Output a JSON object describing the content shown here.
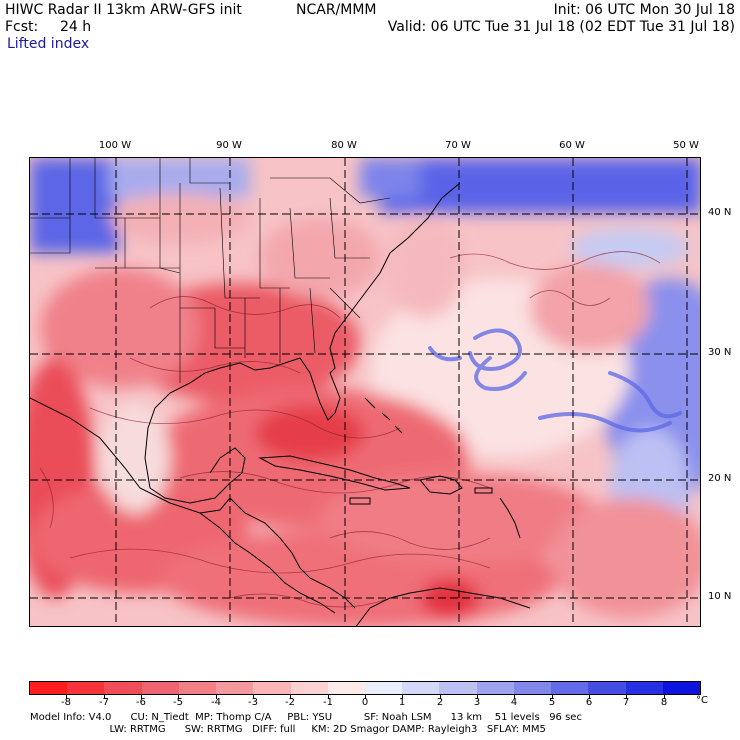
{
  "header": {
    "model": "HIWC Radar II 13km ARW-GFS init",
    "agency": "NCAR/MMM",
    "init": "Init: 06 UTC Mon 30 Jul 18",
    "fcst_label": "Fcst:",
    "fcst_value": "24 h",
    "valid": "Valid: 06 UTC Tue 31 Jul 18 (02 EDT Tue 31 Jul 18)",
    "field": "Lifted index"
  },
  "map": {
    "lon_labels": [
      "100 W",
      "90 W",
      "80 W",
      "70 W",
      "60 W",
      "50 W"
    ],
    "lat_labels": [
      "40 N",
      "30 N",
      "20 N",
      "10 N"
    ]
  },
  "colorbar": {
    "tick_labels": [
      "-8",
      "-7",
      "-6",
      "-5",
      "-4",
      "-3",
      "-2",
      "-1",
      "0",
      "1",
      "2",
      "3",
      "4",
      "5",
      "6",
      "7",
      "8"
    ],
    "unit": "°C",
    "colors": [
      "#ff1e1e",
      "#f7343a",
      "#ef4d57",
      "#ec6570",
      "#f07f86",
      "#f4999e",
      "#f8b6b8",
      "#fbd1d1",
      "#fdeaea",
      "#ecedfb",
      "#d5d8f8",
      "#bcc0f3",
      "#9fa4ee",
      "#8188ea",
      "#646be6",
      "#454de4",
      "#2630e0",
      "#0d14dc"
    ]
  },
  "footer": {
    "line1": "Model Info: V4.0      CU: N_Tiedt  MP: Thomp C/A     PBL: YSU          SF: Noah LSM      13 km    51 levels   96 sec",
    "line2": "                         LW: RRTMG      SW: RRTMG   DIFF: full     KM: 2D Smagor DAMP: Rayleigh3   SFLAY: MM5"
  },
  "colors": {
    "land_border": "#000000",
    "grid": "#000000",
    "unstable": "#f05a64",
    "stable": "#4a56e8"
  }
}
